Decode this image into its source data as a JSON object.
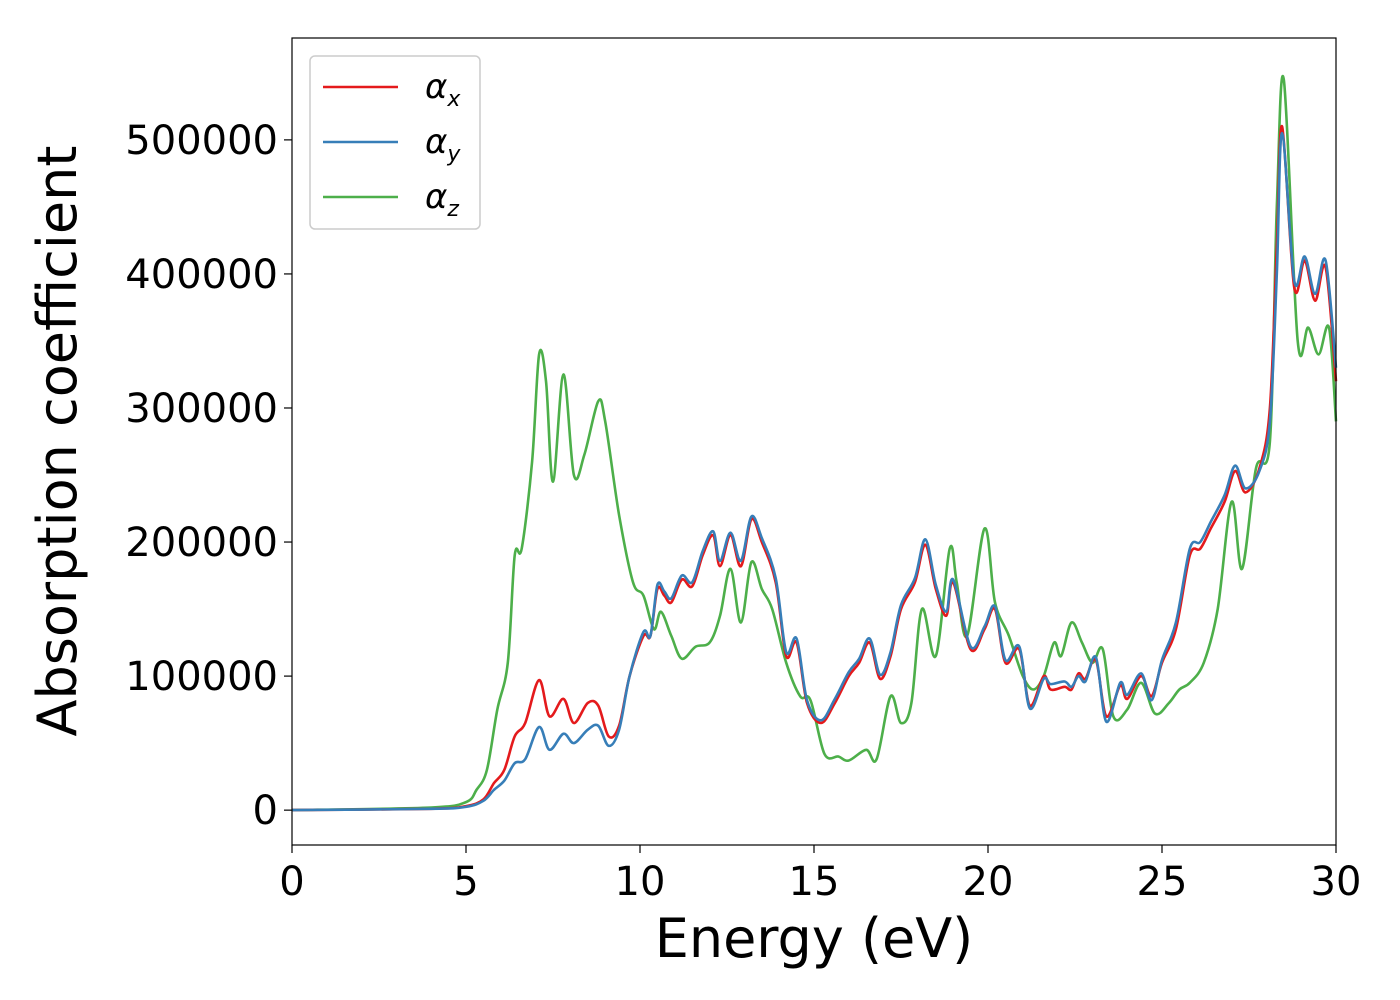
{
  "chart_data": {
    "type": "line",
    "xlabel": "Energy (eV)",
    "ylabel": "Absorption coefficient",
    "xlim": [
      0,
      30
    ],
    "ylim": [
      -26000,
      576000
    ],
    "xticks": [
      0,
      5,
      10,
      15,
      20,
      25,
      30
    ],
    "xtick_labels": [
      "0",
      "5",
      "10",
      "15",
      "20",
      "25",
      "30"
    ],
    "yticks": [
      0,
      100000,
      200000,
      300000,
      400000,
      500000
    ],
    "ytick_labels": [
      "0",
      "100000",
      "200000",
      "300000",
      "400000",
      "500000"
    ],
    "grid": false,
    "legend_position": "top-left",
    "series": [
      {
        "name": "αx",
        "name_base": "α",
        "name_sub": "x",
        "color": "#e41a1c",
        "points": [
          [
            0,
            0
          ],
          [
            4,
            1000
          ],
          [
            5,
            3000
          ],
          [
            5.5,
            8000
          ],
          [
            5.8,
            20000
          ],
          [
            6.1,
            30000
          ],
          [
            6.4,
            55000
          ],
          [
            6.7,
            65000
          ],
          [
            7.1,
            97000
          ],
          [
            7.4,
            70000
          ],
          [
            7.8,
            83000
          ],
          [
            8.1,
            65000
          ],
          [
            8.5,
            80000
          ],
          [
            8.8,
            78000
          ],
          [
            9.1,
            55000
          ],
          [
            9.4,
            63000
          ],
          [
            9.7,
            100000
          ],
          [
            10.1,
            130000
          ],
          [
            10.3,
            130000
          ],
          [
            10.5,
            165000
          ],
          [
            10.7,
            160000
          ],
          [
            10.9,
            155000
          ],
          [
            11.2,
            172000
          ],
          [
            11.5,
            167000
          ],
          [
            11.8,
            190000
          ],
          [
            12.1,
            205000
          ],
          [
            12.3,
            182000
          ],
          [
            12.6,
            205000
          ],
          [
            12.9,
            182000
          ],
          [
            13.2,
            217000
          ],
          [
            13.5,
            200000
          ],
          [
            13.9,
            170000
          ],
          [
            14.2,
            115000
          ],
          [
            14.5,
            125000
          ],
          [
            14.8,
            80000
          ],
          [
            15.2,
            65000
          ],
          [
            15.6,
            80000
          ],
          [
            16.0,
            100000
          ],
          [
            16.3,
            110000
          ],
          [
            16.6,
            125000
          ],
          [
            16.9,
            98000
          ],
          [
            17.2,
            115000
          ],
          [
            17.5,
            150000
          ],
          [
            17.9,
            170000
          ],
          [
            18.2,
            198000
          ],
          [
            18.5,
            165000
          ],
          [
            18.8,
            145000
          ],
          [
            19.0,
            170000
          ],
          [
            19.5,
            120000
          ],
          [
            19.9,
            135000
          ],
          [
            20.2,
            150000
          ],
          [
            20.5,
            110000
          ],
          [
            20.9,
            120000
          ],
          [
            21.2,
            78000
          ],
          [
            21.6,
            100000
          ],
          [
            21.8,
            90000
          ],
          [
            22.2,
            92000
          ],
          [
            22.4,
            90000
          ],
          [
            22.6,
            102000
          ],
          [
            22.8,
            98000
          ],
          [
            23.1,
            112000
          ],
          [
            23.4,
            70000
          ],
          [
            23.8,
            93000
          ],
          [
            24.0,
            83000
          ],
          [
            24.4,
            100000
          ],
          [
            24.7,
            85000
          ],
          [
            25.0,
            110000
          ],
          [
            25.4,
            135000
          ],
          [
            25.8,
            190000
          ],
          [
            26.1,
            195000
          ],
          [
            26.4,
            210000
          ],
          [
            26.8,
            230000
          ],
          [
            27.1,
            253000
          ],
          [
            27.4,
            237000
          ],
          [
            27.8,
            255000
          ],
          [
            28.1,
            300000
          ],
          [
            28.3,
            420000
          ],
          [
            28.45,
            510000
          ],
          [
            28.8,
            390000
          ],
          [
            29.1,
            410000
          ],
          [
            29.4,
            380000
          ],
          [
            29.7,
            405000
          ],
          [
            30,
            320000
          ]
        ]
      },
      {
        "name": "αy",
        "name_base": "α",
        "name_sub": "y",
        "color": "#377eb8",
        "points": [
          [
            0,
            0
          ],
          [
            4,
            1000
          ],
          [
            5,
            2500
          ],
          [
            5.5,
            7000
          ],
          [
            5.8,
            15000
          ],
          [
            6.1,
            22000
          ],
          [
            6.4,
            35000
          ],
          [
            6.7,
            38000
          ],
          [
            7.1,
            62000
          ],
          [
            7.4,
            45000
          ],
          [
            7.8,
            57000
          ],
          [
            8.1,
            50000
          ],
          [
            8.5,
            60000
          ],
          [
            8.8,
            63000
          ],
          [
            9.1,
            48000
          ],
          [
            9.4,
            60000
          ],
          [
            9.7,
            100000
          ],
          [
            10.1,
            133000
          ],
          [
            10.3,
            130000
          ],
          [
            10.5,
            168000
          ],
          [
            10.7,
            163000
          ],
          [
            10.9,
            158000
          ],
          [
            11.2,
            175000
          ],
          [
            11.5,
            170000
          ],
          [
            11.8,
            193000
          ],
          [
            12.1,
            208000
          ],
          [
            12.3,
            186000
          ],
          [
            12.6,
            207000
          ],
          [
            12.9,
            186000
          ],
          [
            13.2,
            219000
          ],
          [
            13.5,
            203000
          ],
          [
            13.9,
            173000
          ],
          [
            14.2,
            118000
          ],
          [
            14.5,
            128000
          ],
          [
            14.8,
            82000
          ],
          [
            15.2,
            67000
          ],
          [
            15.6,
            83000
          ],
          [
            16.0,
            103000
          ],
          [
            16.3,
            113000
          ],
          [
            16.6,
            128000
          ],
          [
            16.9,
            101000
          ],
          [
            17.2,
            118000
          ],
          [
            17.5,
            153000
          ],
          [
            17.9,
            173000
          ],
          [
            18.2,
            202000
          ],
          [
            18.5,
            168000
          ],
          [
            18.8,
            148000
          ],
          [
            19.0,
            172000
          ],
          [
            19.5,
            122000
          ],
          [
            19.9,
            137000
          ],
          [
            20.2,
            152000
          ],
          [
            20.5,
            112000
          ],
          [
            20.9,
            122000
          ],
          [
            21.2,
            76000
          ],
          [
            21.6,
            98000
          ],
          [
            21.8,
            94000
          ],
          [
            22.2,
            96000
          ],
          [
            22.4,
            92000
          ],
          [
            22.6,
            100000
          ],
          [
            22.8,
            96000
          ],
          [
            23.1,
            114000
          ],
          [
            23.4,
            66000
          ],
          [
            23.8,
            95000
          ],
          [
            24.0,
            86000
          ],
          [
            24.4,
            102000
          ],
          [
            24.7,
            82000
          ],
          [
            25.0,
            112000
          ],
          [
            25.4,
            140000
          ],
          [
            25.8,
            195000
          ],
          [
            26.1,
            200000
          ],
          [
            26.4,
            215000
          ],
          [
            26.8,
            235000
          ],
          [
            27.1,
            257000
          ],
          [
            27.4,
            240000
          ],
          [
            27.8,
            253000
          ],
          [
            28.1,
            290000
          ],
          [
            28.3,
            400000
          ],
          [
            28.45,
            505000
          ],
          [
            28.8,
            395000
          ],
          [
            29.1,
            413000
          ],
          [
            29.4,
            385000
          ],
          [
            29.7,
            410000
          ],
          [
            30,
            330000
          ]
        ]
      },
      {
        "name": "αz",
        "name_base": "α",
        "name_sub": "z",
        "color": "#4daf4a",
        "points": [
          [
            0,
            0
          ],
          [
            4,
            2000
          ],
          [
            5,
            6000
          ],
          [
            5.3,
            15000
          ],
          [
            5.6,
            30000
          ],
          [
            5.9,
            75000
          ],
          [
            6.2,
            110000
          ],
          [
            6.4,
            190000
          ],
          [
            6.6,
            195000
          ],
          [
            6.9,
            260000
          ],
          [
            7.1,
            340000
          ],
          [
            7.3,
            320000
          ],
          [
            7.5,
            245000
          ],
          [
            7.8,
            325000
          ],
          [
            8.1,
            250000
          ],
          [
            8.4,
            265000
          ],
          [
            8.8,
            305000
          ],
          [
            9.0,
            290000
          ],
          [
            9.4,
            220000
          ],
          [
            9.8,
            170000
          ],
          [
            10.1,
            160000
          ],
          [
            10.4,
            135000
          ],
          [
            10.6,
            148000
          ],
          [
            10.9,
            130000
          ],
          [
            11.2,
            113000
          ],
          [
            11.6,
            122000
          ],
          [
            12.0,
            125000
          ],
          [
            12.3,
            145000
          ],
          [
            12.6,
            180000
          ],
          [
            12.9,
            140000
          ],
          [
            13.2,
            185000
          ],
          [
            13.5,
            165000
          ],
          [
            13.8,
            150000
          ],
          [
            14.2,
            110000
          ],
          [
            14.6,
            85000
          ],
          [
            14.9,
            82000
          ],
          [
            15.3,
            42000
          ],
          [
            15.7,
            40000
          ],
          [
            16.0,
            37000
          ],
          [
            16.5,
            45000
          ],
          [
            16.8,
            38000
          ],
          [
            17.2,
            85000
          ],
          [
            17.5,
            65000
          ],
          [
            17.8,
            80000
          ],
          [
            18.1,
            150000
          ],
          [
            18.5,
            115000
          ],
          [
            18.9,
            195000
          ],
          [
            19.1,
            170000
          ],
          [
            19.4,
            130000
          ],
          [
            19.9,
            210000
          ],
          [
            20.2,
            155000
          ],
          [
            20.6,
            130000
          ],
          [
            21.0,
            100000
          ],
          [
            21.3,
            90000
          ],
          [
            21.6,
            100000
          ],
          [
            21.9,
            125000
          ],
          [
            22.1,
            115000
          ],
          [
            22.4,
            140000
          ],
          [
            22.7,
            125000
          ],
          [
            23.0,
            110000
          ],
          [
            23.3,
            120000
          ],
          [
            23.6,
            70000
          ],
          [
            24.0,
            75000
          ],
          [
            24.4,
            95000
          ],
          [
            24.8,
            72000
          ],
          [
            25.2,
            80000
          ],
          [
            25.5,
            90000
          ],
          [
            25.8,
            95000
          ],
          [
            26.2,
            110000
          ],
          [
            26.6,
            150000
          ],
          [
            27.0,
            230000
          ],
          [
            27.3,
            180000
          ],
          [
            27.7,
            255000
          ],
          [
            28.1,
            275000
          ],
          [
            28.3,
            450000
          ],
          [
            28.5,
            545000
          ],
          [
            28.9,
            350000
          ],
          [
            29.2,
            360000
          ],
          [
            29.5,
            340000
          ],
          [
            29.8,
            360000
          ],
          [
            30,
            290000
          ]
        ]
      }
    ]
  }
}
